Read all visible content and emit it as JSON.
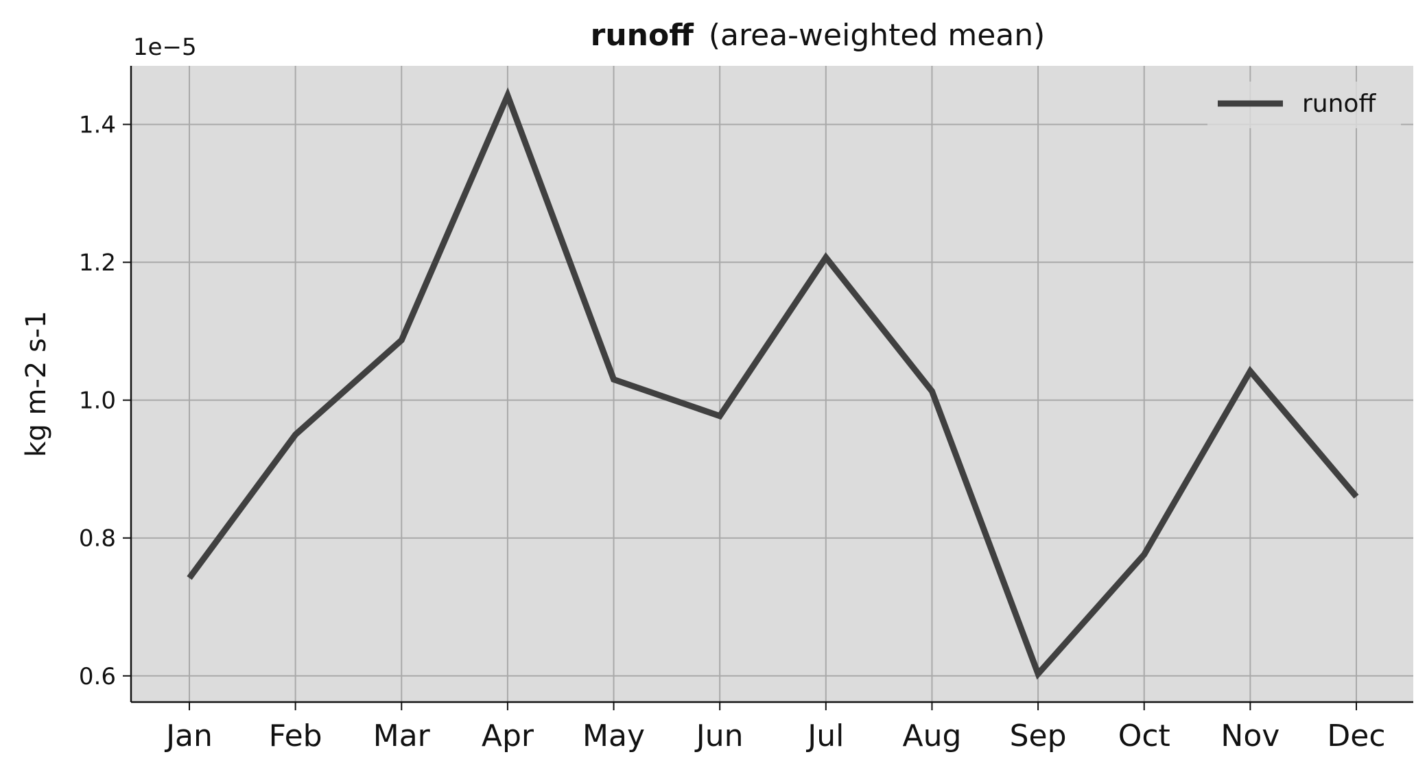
{
  "chart_data": {
    "type": "line",
    "title": "runoff",
    "subtitle": "(area-weighted mean)",
    "xlabel": "",
    "ylabel": "kg m-2 s-1",
    "offset_label": "1e−5",
    "categories": [
      "Jan",
      "Feb",
      "Mar",
      "Apr",
      "May",
      "Jun",
      "Jul",
      "Aug",
      "Sep",
      "Oct",
      "Nov",
      "Dec"
    ],
    "series": [
      {
        "name": "runoff",
        "color": "#404040",
        "values": [
          0.742,
          0.95,
          1.087,
          1.442,
          1.03,
          0.977,
          1.207,
          1.013,
          0.603,
          0.776,
          1.042,
          0.86
        ]
      }
    ],
    "ylim": [
      0.562,
      1.485
    ],
    "yticks": [
      0.6,
      0.8,
      1.0,
      1.2,
      1.4
    ],
    "ytick_labels": [
      "0.6",
      "0.8",
      "1.0",
      "1.2",
      "1.4"
    ],
    "grid": true,
    "legend": "top-right",
    "background": "#dcdcdc",
    "grid_color": "#a9a9a9"
  }
}
